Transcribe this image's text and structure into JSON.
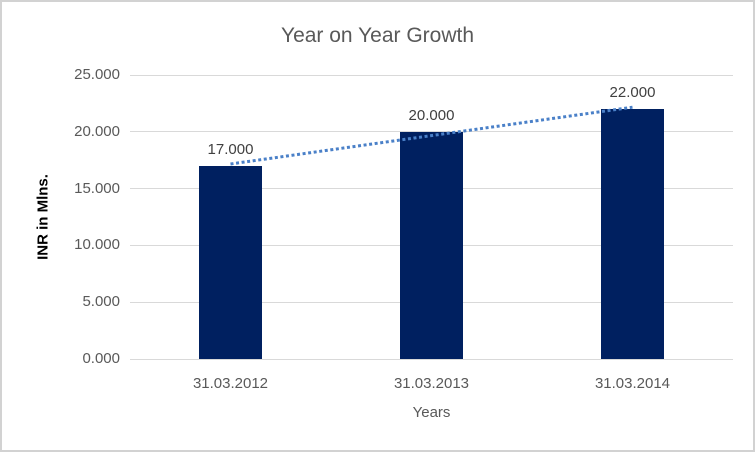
{
  "chart_data": {
    "type": "bar",
    "title": "Year on Year Growth",
    "xlabel": "Years",
    "ylabel": "INR in Mlns.",
    "categories": [
      "31.03.2012",
      "31.03.2013",
      "31.03.2014"
    ],
    "values": [
      17000,
      20000,
      22000
    ],
    "value_labels": [
      "17.000",
      "20.000",
      "22.000"
    ],
    "ylim": [
      0,
      25000
    ],
    "ytick_step": 5000,
    "ytick_labels": [
      "0.000",
      "5.000",
      "10.000",
      "15.000",
      "20.000",
      "25.000"
    ],
    "grid": true,
    "legend": "none",
    "trendline": {
      "type": "linear",
      "line_style": "dotted",
      "color": "#4a80c8"
    },
    "colors": {
      "bar": "#002060",
      "gridline": "#d9d9d9",
      "axis_line": "#d9d9d9",
      "title_text": "#595959",
      "tick_text": "#595959",
      "data_label_text": "#404040",
      "axis_title_text": "#000000",
      "frame_border": "#d2d2d2",
      "background": "#ffffff"
    }
  }
}
